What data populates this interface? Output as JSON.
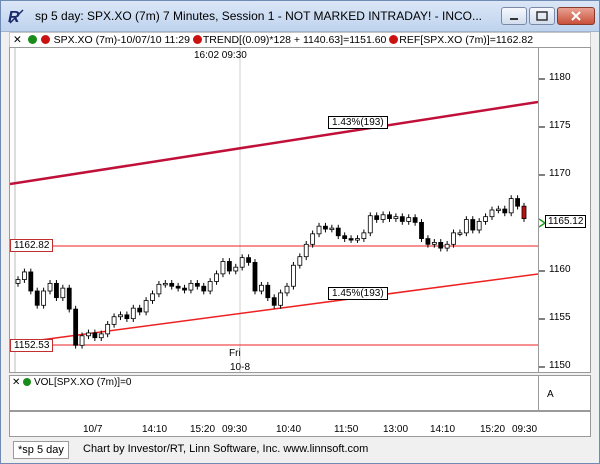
{
  "window": {
    "title": "sp 5 day: SPX.XO (7m) 7 Minutes, Session 1 - NOT MARKED INTRADAY! - INCO...",
    "controls": [
      "minimize",
      "restore",
      "close"
    ]
  },
  "header": {
    "symbol_item": "SPX.XO (7m)-10/07/10 11:29",
    "trend_item": "TREND[(0.09)*128 + 1140.63]=1151.60",
    "ref_item": "REF[SPX.XO (7m)]=1162.82",
    "dot_colors": [
      "#1a8c1a",
      "#cc1111",
      "#cc1111",
      "#cc1111"
    ]
  },
  "chart": {
    "time_label": "16:02  09:30",
    "day_label": "Fri",
    "date_label": "10-8",
    "upper_trend_label": "1.43%(193)",
    "lower_trend_label": "1.45%(193)",
    "ref_price_label": "1162.82",
    "low_ref_label": "1152.53",
    "last_price": "1165.12",
    "right_axis_ticks": [
      "1180",
      "1175",
      "1170",
      "1165",
      "1160",
      "1155",
      "1150"
    ],
    "x_ticks": [
      "10/7",
      "14:10",
      "15:20",
      "09:30",
      "10:40",
      "11:50",
      "13:00",
      "14:10",
      "15:20",
      "09:30"
    ],
    "colors": {
      "upper_trend": "#c0103a",
      "lower_trend": "#ee2020",
      "ref_line": "#ee2020",
      "candle": "#000000",
      "arrow": "#1aa01a"
    }
  },
  "volume": {
    "label": "VOL[SPX.XO (7m)]=0"
  },
  "status": {
    "tab": "*sp 5 day",
    "credit": "Chart by Investor/RT, Linn Software, Inc. www.linnsoft.com"
  },
  "chart_data": {
    "type": "candlestick",
    "title": "SPX.XO (7m) 7 Minutes",
    "y_range": [
      1149,
      1183
    ],
    "closes": [
      1158.7,
      1159.5,
      1157.5,
      1156.0,
      1157.5,
      1158.3,
      1156.8,
      1157.8,
      1155.6,
      1151.8,
      1152.8,
      1153.1,
      1152.6,
      1153.0,
      1154.0,
      1154.8,
      1155.0,
      1154.6,
      1155.7,
      1155.3,
      1156.5,
      1157.2,
      1158.2,
      1158.3,
      1158.0,
      1157.8,
      1157.6,
      1158.3,
      1158.0,
      1157.5,
      1158.5,
      1159.3,
      1160.6,
      1159.6,
      1160.0,
      1161.0,
      1160.5,
      1157.5,
      1158.1,
      1156.8,
      1156.0,
      1157.3,
      1158.0,
      1160.2,
      1161.1,
      1162.4,
      1163.5,
      1164.3,
      1164.0,
      1164.1,
      1163.3,
      1163.0,
      1162.9,
      1163.0,
      1163.6,
      1165.4,
      1165.0,
      1165.5,
      1165.1,
      1165.3,
      1164.8,
      1165.2,
      1164.7,
      1163.0,
      1162.4,
      1162.6,
      1162.0,
      1162.4,
      1163.6,
      1163.6,
      1165.0,
      1163.9,
      1164.8,
      1165.3,
      1166.0,
      1166.1,
      1165.7,
      1167.2,
      1166.4,
      1165.1
    ]
  }
}
